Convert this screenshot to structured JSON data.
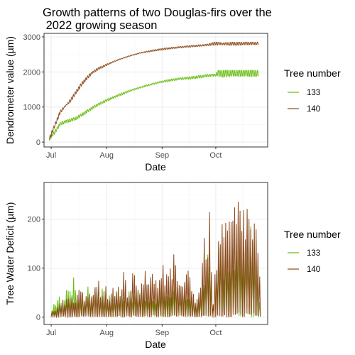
{
  "chart_data": [
    {
      "type": "line",
      "title_lines": [
        "Growth patterns of two Douglas-firs over the",
        " 2022 growing season"
      ],
      "xlabel": "Date",
      "ylabel": "Dendrometer value (µm)",
      "x_ticks": [
        {
          "date": "2022-07-01",
          "label": "Jul"
        },
        {
          "date": "2022-08-01",
          "label": "Aug"
        },
        {
          "date": "2022-09-01",
          "label": "Sep"
        },
        {
          "date": "2022-10-01",
          "label": "Oct"
        }
      ],
      "y_ticks": [
        0,
        1000,
        2000,
        3000
      ],
      "xlim": [
        "2022-06-27",
        "2022-10-30"
      ],
      "ylim": [
        -140,
        3100
      ],
      "grid": true,
      "legend": {
        "title": "Tree number",
        "position": "right"
      },
      "series": [
        {
          "name": "133",
          "color": "#66bd0e",
          "points": [
            [
              "2022-06-30",
              40
            ],
            [
              "2022-07-03",
              230
            ],
            [
              "2022-07-06",
              470
            ],
            [
              "2022-07-09",
              540
            ],
            [
              "2022-07-12",
              580
            ],
            [
              "2022-07-15",
              640
            ],
            [
              "2022-07-19",
              760
            ],
            [
              "2022-07-23",
              900
            ],
            [
              "2022-07-27",
              1030
            ],
            [
              "2022-07-31",
              1130
            ],
            [
              "2022-08-05",
              1250
            ],
            [
              "2022-08-10",
              1350
            ],
            [
              "2022-08-15",
              1460
            ],
            [
              "2022-08-20",
              1540
            ],
            [
              "2022-08-25",
              1610
            ],
            [
              "2022-08-30",
              1680
            ],
            [
              "2022-09-05",
              1730
            ],
            [
              "2022-09-10",
              1770
            ],
            [
              "2022-09-15",
              1790
            ],
            [
              "2022-09-20",
              1810
            ],
            [
              "2022-09-25",
              1850
            ],
            [
              "2022-09-28",
              1870
            ],
            [
              "2022-10-01",
              1880
            ],
            [
              "2022-10-05",
              1850
            ],
            [
              "2022-10-10",
              1870
            ],
            [
              "2022-10-15",
              1860
            ],
            [
              "2022-10-20",
              1860
            ],
            [
              "2022-10-25",
              1870
            ]
          ],
          "upper_points": [
            [
              "2022-06-30",
              120
            ],
            [
              "2022-07-03",
              330
            ],
            [
              "2022-07-06",
              560
            ],
            [
              "2022-07-10",
              640
            ],
            [
              "2022-07-15",
              720
            ],
            [
              "2022-07-20",
              880
            ],
            [
              "2022-07-25",
              1040
            ],
            [
              "2022-07-31",
              1200
            ],
            [
              "2022-08-06",
              1330
            ],
            [
              "2022-08-12",
              1450
            ],
            [
              "2022-08-18",
              1550
            ],
            [
              "2022-08-24",
              1640
            ],
            [
              "2022-08-30",
              1720
            ],
            [
              "2022-09-05",
              1790
            ],
            [
              "2022-09-12",
              1840
            ],
            [
              "2022-09-19",
              1880
            ],
            [
              "2022-09-26",
              1930
            ],
            [
              "2022-10-01",
              1940
            ],
            [
              "2022-10-02",
              2050
            ],
            [
              "2022-10-10",
              2050
            ],
            [
              "2022-10-20",
              2050
            ],
            [
              "2022-10-25",
              2050
            ]
          ]
        },
        {
          "name": "140",
          "color": "#8b4a1c",
          "points": [
            [
              "2022-06-30",
              40
            ],
            [
              "2022-07-03",
              420
            ],
            [
              "2022-07-06",
              800
            ],
            [
              "2022-07-09",
              1020
            ],
            [
              "2022-07-12",
              1150
            ],
            [
              "2022-07-15",
              1380
            ],
            [
              "2022-07-18",
              1600
            ],
            [
              "2022-07-21",
              1780
            ],
            [
              "2022-07-24",
              1950
            ],
            [
              "2022-07-27",
              2050
            ],
            [
              "2022-07-31",
              2150
            ],
            [
              "2022-08-05",
              2280
            ],
            [
              "2022-08-10",
              2380
            ],
            [
              "2022-08-15",
              2460
            ],
            [
              "2022-08-20",
              2530
            ],
            [
              "2022-08-25",
              2570
            ],
            [
              "2022-08-30",
              2610
            ],
            [
              "2022-09-05",
              2650
            ],
            [
              "2022-09-10",
              2680
            ],
            [
              "2022-09-15",
              2700
            ],
            [
              "2022-09-20",
              2720
            ],
            [
              "2022-09-25",
              2740
            ],
            [
              "2022-09-30",
              2760
            ],
            [
              "2022-10-05",
              2770
            ],
            [
              "2022-10-10",
              2760
            ],
            [
              "2022-10-15",
              2760
            ],
            [
              "2022-10-20",
              2770
            ],
            [
              "2022-10-25",
              2780
            ]
          ],
          "upper_points": [
            [
              "2022-06-30",
              150
            ],
            [
              "2022-07-03",
              520
            ],
            [
              "2022-07-06",
              900
            ],
            [
              "2022-07-10",
              1100
            ],
            [
              "2022-07-14",
              1400
            ],
            [
              "2022-07-18",
              1700
            ],
            [
              "2022-07-22",
              1930
            ],
            [
              "2022-07-27",
              2120
            ],
            [
              "2022-08-02",
              2250
            ],
            [
              "2022-08-08",
              2370
            ],
            [
              "2022-08-14",
              2470
            ],
            [
              "2022-08-20",
              2560
            ],
            [
              "2022-08-26",
              2620
            ],
            [
              "2022-09-02",
              2680
            ],
            [
              "2022-09-10",
              2720
            ],
            [
              "2022-09-18",
              2760
            ],
            [
              "2022-09-26",
              2790
            ],
            [
              "2022-10-01",
              2860
            ],
            [
              "2022-10-05",
              2830
            ],
            [
              "2022-10-10",
              2850
            ],
            [
              "2022-10-20",
              2850
            ],
            [
              "2022-10-25",
              2850
            ]
          ]
        }
      ]
    },
    {
      "type": "line",
      "xlabel": "Date",
      "ylabel": "Tree Water Deficit (µm)",
      "x_ticks": [
        {
          "date": "2022-07-01",
          "label": "Jul"
        },
        {
          "date": "2022-08-01",
          "label": "Aug"
        },
        {
          "date": "2022-09-01",
          "label": "Sep"
        },
        {
          "date": "2022-10-01",
          "label": "Oct"
        }
      ],
      "y_ticks": [
        0,
        100,
        200
      ],
      "xlim": [
        "2022-06-27",
        "2022-10-30"
      ],
      "ylim": [
        -15,
        275
      ],
      "grid": true,
      "legend": {
        "title": "Tree number",
        "position": "right"
      },
      "series": [
        {
          "name": "133",
          "color": "#66bd0e",
          "daily_peaks": [
            [
              "2022-07-01",
              25
            ],
            [
              "2022-07-03",
              30
            ],
            [
              "2022-07-05",
              55
            ],
            [
              "2022-07-07",
              40
            ],
            [
              "2022-07-09",
              70
            ],
            [
              "2022-07-11",
              60
            ],
            [
              "2022-07-13",
              95
            ],
            [
              "2022-07-15",
              55
            ],
            [
              "2022-07-17",
              45
            ],
            [
              "2022-07-19",
              60
            ],
            [
              "2022-07-21",
              65
            ],
            [
              "2022-07-23",
              35
            ],
            [
              "2022-07-25",
              70
            ],
            [
              "2022-07-27",
              50
            ],
            [
              "2022-07-29",
              60
            ],
            [
              "2022-07-31",
              40
            ],
            [
              "2022-08-02",
              55
            ],
            [
              "2022-08-04",
              30
            ],
            [
              "2022-08-06",
              65
            ],
            [
              "2022-08-08",
              60
            ],
            [
              "2022-08-10",
              50
            ],
            [
              "2022-08-12",
              70
            ],
            [
              "2022-08-14",
              55
            ],
            [
              "2022-08-16",
              45
            ],
            [
              "2022-08-18",
              60
            ],
            [
              "2022-08-20",
              70
            ],
            [
              "2022-08-22",
              50
            ],
            [
              "2022-08-24",
              55
            ],
            [
              "2022-08-26",
              60
            ],
            [
              "2022-08-28",
              45
            ],
            [
              "2022-08-30",
              55
            ],
            [
              "2022-09-01",
              65
            ],
            [
              "2022-09-03",
              50
            ],
            [
              "2022-09-05",
              60
            ],
            [
              "2022-09-07",
              55
            ],
            [
              "2022-09-09",
              65
            ],
            [
              "2022-09-11",
              55
            ],
            [
              "2022-09-13",
              60
            ],
            [
              "2022-09-15",
              50
            ],
            [
              "2022-09-17",
              55
            ],
            [
              "2022-09-19",
              30
            ],
            [
              "2022-09-21",
              40
            ],
            [
              "2022-09-23",
              60
            ],
            [
              "2022-09-25",
              120
            ],
            [
              "2022-09-27",
              140
            ],
            [
              "2022-09-29",
              40
            ],
            [
              "2022-10-01",
              110
            ],
            [
              "2022-10-03",
              150
            ],
            [
              "2022-10-05",
              130
            ],
            [
              "2022-10-07",
              160
            ],
            [
              "2022-10-09",
              140
            ],
            [
              "2022-10-11",
              170
            ],
            [
              "2022-10-13",
              180
            ],
            [
              "2022-10-15",
              190
            ],
            [
              "2022-10-17",
              210
            ],
            [
              "2022-10-19",
              200
            ],
            [
              "2022-10-21",
              185
            ],
            [
              "2022-10-23",
              160
            ],
            [
              "2022-10-25",
              45
            ]
          ]
        },
        {
          "name": "140",
          "color": "#8b4a1c",
          "daily_peaks": [
            [
              "2022-07-01",
              15
            ],
            [
              "2022-07-03",
              20
            ],
            [
              "2022-07-05",
              30
            ],
            [
              "2022-07-07",
              45
            ],
            [
              "2022-07-09",
              40
            ],
            [
              "2022-07-11",
              50
            ],
            [
              "2022-07-13",
              35
            ],
            [
              "2022-07-15",
              55
            ],
            [
              "2022-07-17",
              60
            ],
            [
              "2022-07-19",
              50
            ],
            [
              "2022-07-21",
              60
            ],
            [
              "2022-07-23",
              55
            ],
            [
              "2022-07-25",
              65
            ],
            [
              "2022-07-27",
              80
            ],
            [
              "2022-07-29",
              45
            ],
            [
              "2022-07-31",
              70
            ],
            [
              "2022-08-02",
              60
            ],
            [
              "2022-08-04",
              95
            ],
            [
              "2022-08-06",
              55
            ],
            [
              "2022-08-08",
              75
            ],
            [
              "2022-08-10",
              110
            ],
            [
              "2022-08-12",
              70
            ],
            [
              "2022-08-14",
              85
            ],
            [
              "2022-08-16",
              100
            ],
            [
              "2022-08-18",
              75
            ],
            [
              "2022-08-20",
              90
            ],
            [
              "2022-08-22",
              130
            ],
            [
              "2022-08-24",
              80
            ],
            [
              "2022-08-26",
              95
            ],
            [
              "2022-08-28",
              110
            ],
            [
              "2022-08-30",
              85
            ],
            [
              "2022-09-01",
              115
            ],
            [
              "2022-09-03",
              90
            ],
            [
              "2022-09-05",
              100
            ],
            [
              "2022-09-07",
              130
            ],
            [
              "2022-09-09",
              85
            ],
            [
              "2022-09-11",
              105
            ],
            [
              "2022-09-13",
              95
            ],
            [
              "2022-09-15",
              110
            ],
            [
              "2022-09-17",
              90
            ],
            [
              "2022-09-19",
              40
            ],
            [
              "2022-09-21",
              60
            ],
            [
              "2022-09-23",
              130
            ],
            [
              "2022-09-25",
              195
            ],
            [
              "2022-09-27",
              220
            ],
            [
              "2022-09-29",
              30
            ],
            [
              "2022-10-01",
              160
            ],
            [
              "2022-10-03",
              200
            ],
            [
              "2022-10-05",
              180
            ],
            [
              "2022-10-07",
              230
            ],
            [
              "2022-10-09",
              215
            ],
            [
              "2022-10-11",
              240
            ],
            [
              "2022-10-13",
              255
            ],
            [
              "2022-10-15",
              245
            ],
            [
              "2022-10-17",
              260
            ],
            [
              "2022-10-19",
              235
            ],
            [
              "2022-10-21",
              225
            ],
            [
              "2022-10-23",
              200
            ],
            [
              "2022-10-25",
              90
            ]
          ]
        }
      ]
    }
  ]
}
